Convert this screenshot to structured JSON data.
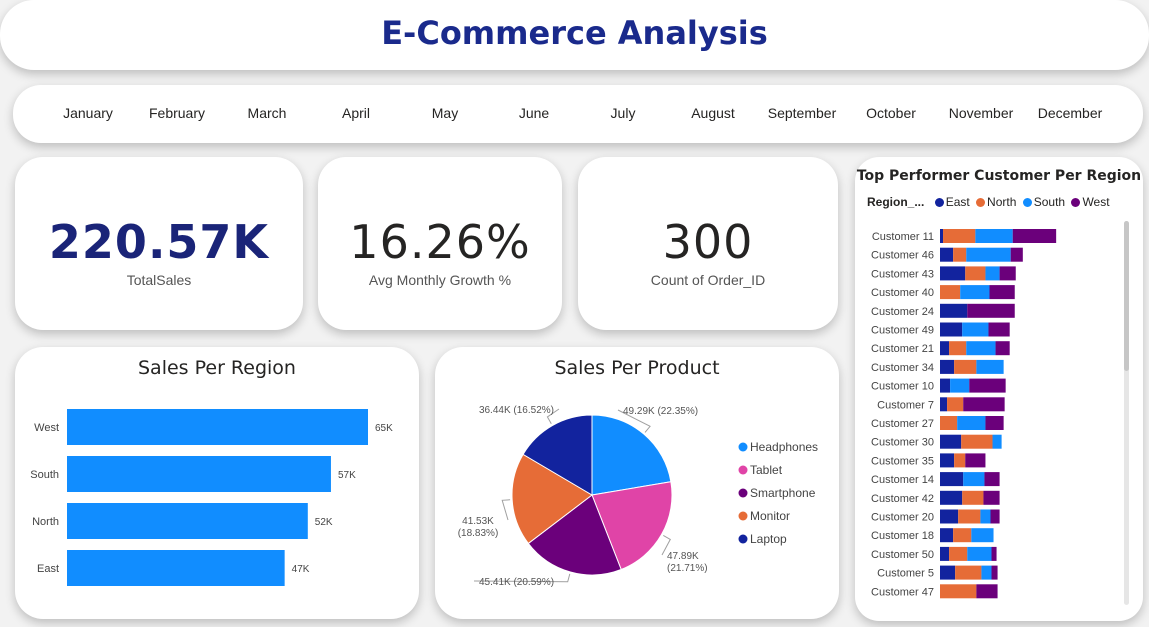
{
  "header": {
    "title": "E-Commerce Analysis"
  },
  "months": [
    "January",
    "February",
    "March",
    "April",
    "May",
    "June",
    "July",
    "August",
    "September",
    "October",
    "November",
    "December"
  ],
  "kpis": {
    "total_sales": {
      "value": "220.57K",
      "label": "TotalSales"
    },
    "avg_growth": {
      "value": "16.26%",
      "label": "Avg Monthly Growth %"
    },
    "order_count": {
      "value": "300",
      "label": "Count of Order_ID"
    }
  },
  "colors": {
    "bar": "#118dff",
    "east": "#12239e",
    "north": "#e66c37",
    "south": "#118dff",
    "west": "#6b007b",
    "headphones": "#118dff",
    "tablet": "#e044a7",
    "smartphone": "#6b007b",
    "monitor": "#e66c37",
    "laptop": "#12239e"
  },
  "chart_data": [
    {
      "type": "bar",
      "orientation": "horizontal",
      "title": "Sales Per Region",
      "categories": [
        "West",
        "South",
        "North",
        "East"
      ],
      "values": [
        65,
        57,
        52,
        47
      ],
      "value_labels": [
        "65K",
        "57K",
        "52K",
        "47K"
      ],
      "xlim": [
        0,
        70
      ]
    },
    {
      "type": "pie",
      "title": "Sales Per Product",
      "labels": [
        "Headphones",
        "Tablet",
        "Smartphone",
        "Monitor",
        "Laptop"
      ],
      "values": [
        49.29,
        47.89,
        45.41,
        41.53,
        36.44
      ],
      "percents": [
        22.35,
        21.71,
        20.59,
        18.83,
        16.52
      ],
      "data_labels": [
        "49.29K (22.35%)",
        "47.89K (21.71%)",
        "45.41K (20.59%)",
        "41.53K (18.83%)",
        "36.44K (16.52%)"
      ],
      "legend": [
        "Headphones",
        "Tablet",
        "Smartphone",
        "Monitor",
        "Laptop"
      ]
    },
    {
      "type": "bar",
      "orientation": "horizontal",
      "stacked": true,
      "title": "Top Performer Customer Per Region",
      "legend_title": "Region_...",
      "legend": [
        "East",
        "North",
        "South",
        "West"
      ],
      "categories": [
        "Customer 11",
        "Customer 46",
        "Customer 43",
        "Customer 40",
        "Customer 24",
        "Customer 49",
        "Customer 21",
        "Customer 34",
        "Customer 10",
        "Customer 7",
        "Customer 27",
        "Customer 30",
        "Customer 35",
        "Customer 14",
        "Customer 42",
        "Customer 20",
        "Customer 18",
        "Customer 50",
        "Customer 5",
        "Customer 47"
      ],
      "series": [
        {
          "name": "East",
          "values": [
            0.3,
            1.3,
            2.5,
            0.0,
            2.7,
            2.2,
            0.9,
            1.4,
            1.0,
            0.7,
            0.0,
            2.1,
            1.4,
            2.3,
            2.2,
            1.8,
            1.3,
            0.9,
            1.5,
            0.0
          ]
        },
        {
          "name": "North",
          "values": [
            3.2,
            1.3,
            2.0,
            2.0,
            0.0,
            0.0,
            1.7,
            2.2,
            0.0,
            1.6,
            1.7,
            3.1,
            1.1,
            0.0,
            2.1,
            2.2,
            1.8,
            1.8,
            2.6,
            3.6
          ]
        },
        {
          "name": "South",
          "values": [
            3.7,
            4.4,
            1.4,
            2.9,
            0.0,
            2.6,
            2.9,
            2.7,
            1.9,
            0.0,
            2.8,
            0.9,
            0.0,
            2.1,
            0.0,
            1.0,
            2.2,
            2.4,
            1.0,
            0.0
          ]
        },
        {
          "name": "West",
          "values": [
            4.3,
            1.2,
            1.6,
            2.5,
            4.7,
            2.1,
            1.4,
            0.0,
            3.6,
            4.1,
            1.8,
            0.0,
            2.0,
            1.5,
            1.6,
            0.9,
            0.0,
            0.5,
            0.6,
            2.1
          ]
        }
      ]
    }
  ]
}
